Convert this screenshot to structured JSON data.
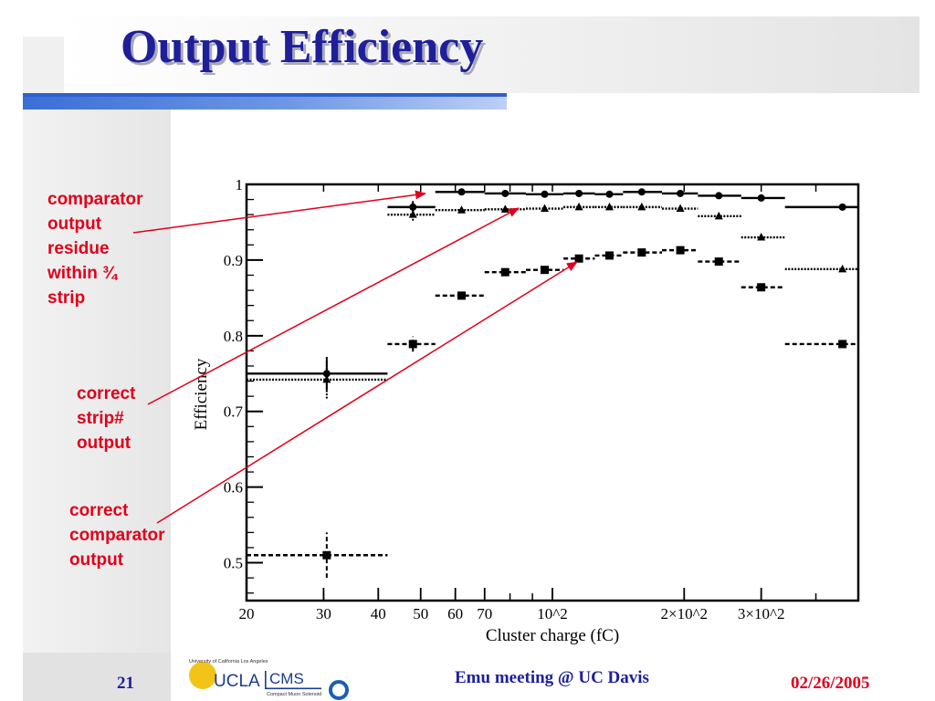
{
  "slide": {
    "title": "Output Efficiency",
    "annotations": [
      "comparator\noutput\nresidue\nwithin ¾\nstrip",
      "correct\nstrip#\noutput",
      "correct\ncomparator\noutput"
    ],
    "slide_number": "21",
    "footer_center": "Emu meeting @ UC Davis",
    "footer_date": "02/26/2005",
    "logo": {
      "ucla_top": "University of California Los Angeles",
      "ucla": "UCLA",
      "cms": "CMS",
      "cms_sub": "Compact Muon Solenoid"
    },
    "colors": {
      "title": "#1f1f9a",
      "annotation": "#e0001b",
      "rule": "#3a6fd6"
    }
  },
  "chart_data": {
    "type": "scatter",
    "xlabel": "Cluster charge (fC)",
    "ylabel": "Efficiency",
    "xscale": "log",
    "xlim": [
      20,
      500
    ],
    "ylim": [
      0.45,
      1.0
    ],
    "x_ticks": [
      {
        "value": 20,
        "label": "20"
      },
      {
        "value": 30,
        "label": "30"
      },
      {
        "value": 40,
        "label": "40"
      },
      {
        "value": 50,
        "label": "50"
      },
      {
        "value": 60,
        "label": "60"
      },
      {
        "value": 70,
        "label": "70"
      },
      {
        "value": 100,
        "label": "10^2"
      },
      {
        "value": 200,
        "label": "2×10^2"
      },
      {
        "value": 300,
        "label": "3×10^2"
      }
    ],
    "y_ticks": [
      {
        "value": 0.5,
        "label": "0.5"
      },
      {
        "value": 0.6,
        "label": "0.6"
      },
      {
        "value": 0.7,
        "label": "0.7"
      },
      {
        "value": 0.8,
        "label": "0.8"
      },
      {
        "value": 0.9,
        "label": "0.9"
      },
      {
        "value": 1.0,
        "label": "1"
      }
    ],
    "series": [
      {
        "marker": "circle",
        "line": "solid",
        "points": [
          {
            "x": 30.5,
            "xlo": 20,
            "xhi": 42,
            "y": 0.75,
            "yerr": 0.022
          },
          {
            "x": 48,
            "xlo": 42,
            "xhi": 54,
            "y": 0.97,
            "yerr": 0.008
          },
          {
            "x": 62,
            "xlo": 54,
            "xhi": 70,
            "y": 0.99,
            "yerr": 0.0
          },
          {
            "x": 78,
            "xlo": 70,
            "xhi": 87,
            "y": 0.988,
            "yerr": 0.0
          },
          {
            "x": 96,
            "xlo": 87,
            "xhi": 106,
            "y": 0.987,
            "yerr": 0.0
          },
          {
            "x": 115,
            "xlo": 106,
            "xhi": 125,
            "y": 0.988,
            "yerr": 0.0
          },
          {
            "x": 135,
            "xlo": 125,
            "xhi": 145,
            "y": 0.987,
            "yerr": 0.0
          },
          {
            "x": 160,
            "xlo": 145,
            "xhi": 178,
            "y": 0.99,
            "yerr": 0.0
          },
          {
            "x": 196,
            "xlo": 178,
            "xhi": 215,
            "y": 0.988,
            "yerr": 0.0
          },
          {
            "x": 240,
            "xlo": 215,
            "xhi": 270,
            "y": 0.985,
            "yerr": 0.0
          },
          {
            "x": 300,
            "xlo": 270,
            "xhi": 340,
            "y": 0.982,
            "yerr": 0.0
          },
          {
            "x": 460,
            "xlo": 340,
            "xhi": 500,
            "y": 0.97,
            "yerr": 0.0
          }
        ]
      },
      {
        "marker": "triangle",
        "line": "dotted",
        "points": [
          {
            "x": 30.5,
            "xlo": 20,
            "xhi": 42,
            "y": 0.742,
            "yerr": 0.025
          },
          {
            "x": 48,
            "xlo": 42,
            "xhi": 54,
            "y": 0.96,
            "yerr": 0.008
          },
          {
            "x": 62,
            "xlo": 54,
            "xhi": 70,
            "y": 0.966,
            "yerr": 0.0
          },
          {
            "x": 78,
            "xlo": 70,
            "xhi": 87,
            "y": 0.967,
            "yerr": 0.0
          },
          {
            "x": 96,
            "xlo": 87,
            "xhi": 106,
            "y": 0.968,
            "yerr": 0.0
          },
          {
            "x": 115,
            "xlo": 106,
            "xhi": 125,
            "y": 0.97,
            "yerr": 0.0
          },
          {
            "x": 135,
            "xlo": 125,
            "xhi": 145,
            "y": 0.97,
            "yerr": 0.0
          },
          {
            "x": 160,
            "xlo": 145,
            "xhi": 178,
            "y": 0.97,
            "yerr": 0.0
          },
          {
            "x": 196,
            "xlo": 178,
            "xhi": 215,
            "y": 0.968,
            "yerr": 0.0
          },
          {
            "x": 240,
            "xlo": 215,
            "xhi": 270,
            "y": 0.958,
            "yerr": 0.0
          },
          {
            "x": 300,
            "xlo": 270,
            "xhi": 340,
            "y": 0.93,
            "yerr": 0.0
          },
          {
            "x": 460,
            "xlo": 340,
            "xhi": 500,
            "y": 0.888,
            "yerr": 0.0
          }
        ]
      },
      {
        "marker": "square",
        "line": "dashed",
        "points": [
          {
            "x": 30.5,
            "xlo": 20,
            "xhi": 42,
            "y": 0.51,
            "yerr": 0.03
          },
          {
            "x": 48,
            "xlo": 42,
            "xhi": 54,
            "y": 0.789,
            "yerr": 0.01
          },
          {
            "x": 62,
            "xlo": 54,
            "xhi": 70,
            "y": 0.853,
            "yerr": 0.0
          },
          {
            "x": 78,
            "xlo": 70,
            "xhi": 87,
            "y": 0.884,
            "yerr": 0.0
          },
          {
            "x": 96,
            "xlo": 87,
            "xhi": 106,
            "y": 0.887,
            "yerr": 0.0
          },
          {
            "x": 115,
            "xlo": 106,
            "xhi": 125,
            "y": 0.902,
            "yerr": 0.0
          },
          {
            "x": 135,
            "xlo": 125,
            "xhi": 145,
            "y": 0.906,
            "yerr": 0.0
          },
          {
            "x": 160,
            "xlo": 145,
            "xhi": 178,
            "y": 0.91,
            "yerr": 0.0
          },
          {
            "x": 196,
            "xlo": 178,
            "xhi": 215,
            "y": 0.913,
            "yerr": 0.0
          },
          {
            "x": 240,
            "xlo": 215,
            "xhi": 270,
            "y": 0.898,
            "yerr": 0.0
          },
          {
            "x": 300,
            "xlo": 270,
            "xhi": 340,
            "y": 0.864,
            "yerr": 0.0
          },
          {
            "x": 460,
            "xlo": 340,
            "xhi": 500,
            "y": 0.789,
            "yerr": 0.0
          }
        ]
      }
    ]
  }
}
